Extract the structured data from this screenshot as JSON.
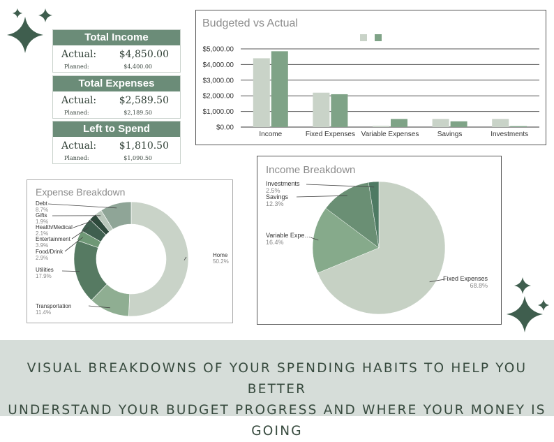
{
  "summary": [
    {
      "title": "Total Income",
      "actual_label": "Actual:",
      "actual": "$4,850.00",
      "planned_label": "Planned:",
      "planned": "$4,400.00"
    },
    {
      "title": "Total Expenses",
      "actual_label": "Actual:",
      "actual": "$2,589.50",
      "planned_label": "Planned:",
      "planned": "$2,189.50"
    },
    {
      "title": "Left to Spend",
      "actual_label": "Actual:",
      "actual": "$1,810.50",
      "planned_label": "Planned:",
      "planned": "$1,090.50"
    }
  ],
  "banner": {
    "line1": "VISUAL BREAKDOWNS OF YOUR SPENDING HABITS TO HELP YOU BETTER",
    "line2": "UNDERSTAND YOUR BUDGET PROGRESS AND WHERE YOUR MONEY IS GOING"
  },
  "colors": {
    "planned": "#c9d3c8",
    "actual": "#7fa387",
    "header": "#6b8c78",
    "star": "#3f5e4e"
  },
  "chart_data": [
    {
      "type": "bar",
      "title": "Budgeted vs Actual",
      "categories": [
        "Income",
        "Fixed Expenses",
        "Variable Expenses",
        "Savings",
        "Investments"
      ],
      "series": [
        {
          "values": [
            4400,
            2200,
            80,
            520,
            520
          ]
        },
        {
          "values": [
            4850,
            2100,
            520,
            370,
            60
          ]
        }
      ],
      "yticks": [
        "$0.00",
        "$1,000.00",
        "$2,000.00",
        "$3,000.00",
        "$4,000.00",
        "$5,000.00"
      ],
      "ylim": [
        0,
        5000
      ],
      "grid": true,
      "legend": "top-center"
    },
    {
      "type": "pie",
      "title": "Income Breakdown",
      "slices": [
        {
          "label": "Fixed Expenses",
          "pct": "68.8%",
          "value": 68.8
        },
        {
          "label": "Variable Expe…",
          "pct": "16.4%",
          "value": 16.4
        },
        {
          "label": "Savings",
          "pct": "12.3%",
          "value": 12.3
        },
        {
          "label": "Investments",
          "pct": "2.5%",
          "value": 2.5
        }
      ]
    },
    {
      "type": "pie",
      "title": "Expense Breakdown",
      "slices": [
        {
          "label": "Home",
          "pct": "50.2%",
          "value": 50.2
        },
        {
          "label": "Transportation",
          "pct": "11.4%",
          "value": 11.4
        },
        {
          "label": "Utilities",
          "pct": "17.9%",
          "value": 17.9
        },
        {
          "label": "Food/Drink",
          "pct": "2.9%",
          "value": 2.9
        },
        {
          "label": "Entertainment",
          "pct": "3.9%",
          "value": 3.9
        },
        {
          "label": "Health/Medical",
          "pct": "2.1%",
          "value": 2.1
        },
        {
          "label": "Gifts",
          "pct": "1.9%",
          "value": 1.9
        },
        {
          "label": "Debt",
          "pct": "8.7%",
          "value": 8.7
        }
      ]
    }
  ]
}
